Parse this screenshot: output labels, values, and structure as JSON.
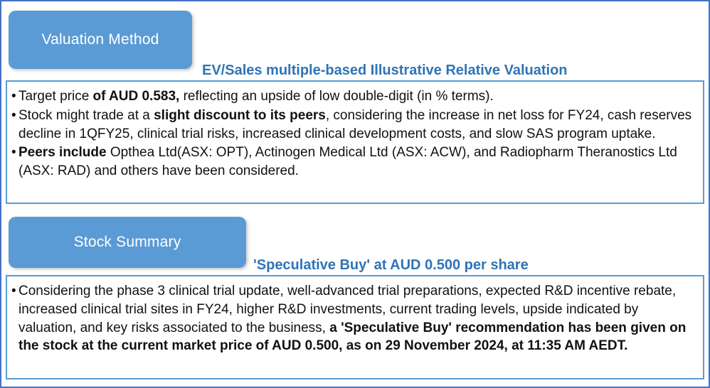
{
  "glyphs": {
    "bullet": "•"
  },
  "colors": {
    "tab_background": "#5B9BD5",
    "box_border": "#5B9BD5",
    "outer_border": "#4472C4",
    "heading_text": "#2E74B5",
    "body_text": "#111111",
    "tab_text": "#FFFFFF"
  },
  "sections": [
    {
      "tab_label": "Valuation Method",
      "heading": "EV/Sales multiple-based Illustrative Relative Valuation",
      "bullets": [
        [
          {
            "t": "Target price ",
            "b": false
          },
          {
            "t": "of AUD 0.583,",
            "b": true
          },
          {
            "t": " reflecting an upside of low double-digit (in % terms).",
            "b": false
          }
        ],
        [
          {
            "t": " Stock might trade at a ",
            "b": false
          },
          {
            "t": "slight discount to its peers",
            "b": true
          },
          {
            "t": ", considering the increase in net loss for FY24, cash reserves decline in 1QFY25, clinical trial risks, increased clinical development costs, and slow SAS program uptake.",
            "b": false
          }
        ],
        [
          {
            "t": " ",
            "b": false
          },
          {
            "t": "Peers include",
            "b": true
          },
          {
            "t": " Opthea Ltd(ASX: OPT), Actinogen Medical Ltd (ASX: ACW), and Radiopharm Theranostics Ltd (ASX: RAD) and others have been considered.",
            "b": false
          }
        ]
      ]
    },
    {
      "tab_label": "Stock Summary",
      "heading": "'Speculative Buy' at AUD 0.500 per share",
      "bullets": [
        [
          {
            "t": "Considering the phase 3 clinical trial update, well-advanced trial preparations, expected R&D incentive rebate, increased clinical trial sites in FY24, higher R&D investments, current trading levels, upside indicated by valuation, and key risks associated to the business, ",
            "b": false
          },
          {
            "t": "a 'Speculative Buy' recommendation has been given on the stock at the current market price of AUD 0.500, as on 29 November 2024, at 11:35 AM AEDT.",
            "b": true
          }
        ]
      ]
    }
  ]
}
